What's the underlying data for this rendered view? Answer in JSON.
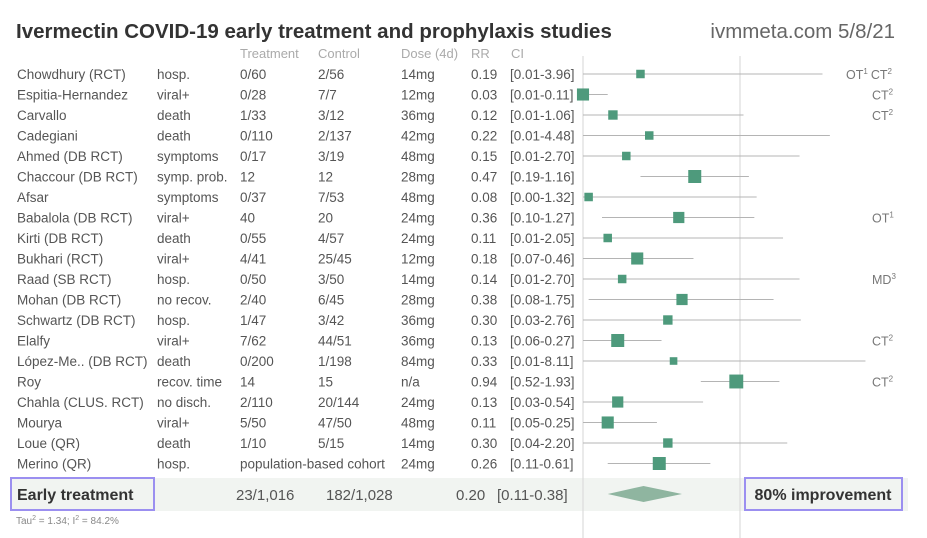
{
  "title": "Ivermectin COVID-19 early treatment and prophylaxis studies",
  "site": "ivmmeta.com 5/8/21",
  "headers": {
    "treatment": "Treatment",
    "control": "Control",
    "dose": "Dose (4d)",
    "rr": "RR",
    "ci": "CI"
  },
  "chart_data": {
    "type": "forest",
    "x_scale": "log",
    "reference_line": 1.0,
    "studies": [
      {
        "name": "Chowdhury (RCT)",
        "outcome": "hosp.",
        "treatment": "0/60",
        "control": "2/56",
        "dose": "14mg",
        "rr": 0.19,
        "rr_text": "0.19",
        "ci_low": 0.01,
        "ci_high": 3.96,
        "ci_text": "[0.01-3.96]",
        "weight": 0.5,
        "note": "OT",
        "note_sup": "1",
        "note2": "CT",
        "note2_sup": "2"
      },
      {
        "name": "Espitia-Hernandez",
        "outcome": "viral+",
        "treatment": "0/28",
        "control": "7/7",
        "dose": "12mg",
        "rr": 0.03,
        "rr_text": "0.03",
        "ci_low": 0.01,
        "ci_high": 0.11,
        "ci_text": "[0.01-0.11]",
        "weight": 0.9,
        "note": "CT",
        "note_sup": "2"
      },
      {
        "name": "Carvallo",
        "outcome": "death",
        "treatment": "1/33",
        "control": "3/12",
        "dose": "36mg",
        "rr": 0.12,
        "rr_text": "0.12",
        "ci_low": 0.01,
        "ci_high": 1.06,
        "ci_text": "[0.01-1.06]",
        "weight": 0.6,
        "note": "CT",
        "note_sup": "2"
      },
      {
        "name": "Cadegiani",
        "outcome": "death",
        "treatment": "0/110",
        "control": "2/137",
        "dose": "42mg",
        "rr": 0.22,
        "rr_text": "0.22",
        "ci_low": 0.01,
        "ci_high": 4.48,
        "ci_text": "[0.01-4.48]",
        "weight": 0.5
      },
      {
        "name": "Ahmed (DB RCT)",
        "outcome": "symptoms",
        "treatment": "0/17",
        "control": "3/19",
        "dose": "48mg",
        "rr": 0.15,
        "rr_text": "0.15",
        "ci_low": 0.01,
        "ci_high": 2.7,
        "ci_text": "[0.01-2.70]",
        "weight": 0.5
      },
      {
        "name": "Chaccour (DB RCT)",
        "outcome": "symp. prob.",
        "treatment": "12",
        "control": "12",
        "dose": "28mg",
        "rr": 0.47,
        "rr_text": "0.47",
        "ci_low": 0.19,
        "ci_high": 1.16,
        "ci_text": "[0.19-1.16]",
        "weight": 1.0
      },
      {
        "name": "Afsar",
        "outcome": "symptoms",
        "treatment": "0/37",
        "control": "7/53",
        "dose": "48mg",
        "rr": 0.08,
        "rr_text": "0.08",
        "ci_low": 0.0,
        "ci_high": 1.32,
        "ci_text": "[0.00-1.32]",
        "weight": 0.5
      },
      {
        "name": "Babalola (DB RCT)",
        "outcome": "viral+",
        "treatment": "40",
        "control": "20",
        "dose": "24mg",
        "rr": 0.36,
        "rr_text": "0.36",
        "ci_low": 0.1,
        "ci_high": 1.27,
        "ci_text": "[0.10-1.27]",
        "weight": 0.8,
        "note": "OT",
        "note_sup": "1"
      },
      {
        "name": "Kirti (DB RCT)",
        "outcome": "death",
        "treatment": "0/55",
        "control": "4/57",
        "dose": "24mg",
        "rr": 0.11,
        "rr_text": "0.11",
        "ci_low": 0.01,
        "ci_high": 2.05,
        "ci_text": "[0.01-2.05]",
        "weight": 0.5
      },
      {
        "name": "Bukhari (RCT)",
        "outcome": "viral+",
        "treatment": "4/41",
        "control": "25/45",
        "dose": "12mg",
        "rr": 0.18,
        "rr_text": "0.18",
        "ci_low": 0.07,
        "ci_high": 0.46,
        "ci_text": "[0.07-0.46]",
        "weight": 0.9
      },
      {
        "name": "Raad (SB RCT)",
        "outcome": "hosp.",
        "treatment": "0/50",
        "control": "3/50",
        "dose": "14mg",
        "rr": 0.14,
        "rr_text": "0.14",
        "ci_low": 0.01,
        "ci_high": 2.7,
        "ci_text": "[0.01-2.70]",
        "weight": 0.5,
        "note": "MD",
        "note_sup": "3"
      },
      {
        "name": "Mohan (DB RCT)",
        "outcome": "no recov.",
        "treatment": "2/40",
        "control": "6/45",
        "dose": "28mg",
        "rr": 0.38,
        "rr_text": "0.38",
        "ci_low": 0.08,
        "ci_high": 1.75,
        "ci_text": "[0.08-1.75]",
        "weight": 0.8
      },
      {
        "name": "Schwartz (DB RCT)",
        "outcome": "hosp.",
        "treatment": "1/47",
        "control": "3/42",
        "dose": "36mg",
        "rr": 0.3,
        "rr_text": "0.30",
        "ci_low": 0.03,
        "ci_high": 2.76,
        "ci_text": "[0.03-2.76]",
        "weight": 0.6
      },
      {
        "name": "Elalfy",
        "outcome": "viral+",
        "treatment": "7/62",
        "control": "44/51",
        "dose": "36mg",
        "rr": 0.13,
        "rr_text": "0.13",
        "ci_low": 0.06,
        "ci_high": 0.27,
        "ci_text": "[0.06-0.27]",
        "weight": 1.0,
        "note": "CT",
        "note_sup": "2"
      },
      {
        "name": "López-Me.. (DB RCT)",
        "outcome": "death",
        "treatment": "0/200",
        "control": "1/198",
        "dose": "84mg",
        "rr": 0.33,
        "rr_text": "0.33",
        "ci_low": 0.01,
        "ci_high": 8.11,
        "ci_text": "[0.01-8.11]",
        "weight": 0.4
      },
      {
        "name": "Roy",
        "outcome": "recov. time",
        "treatment": "14",
        "control": "15",
        "dose": "n/a",
        "rr": 0.94,
        "rr_text": "0.94",
        "ci_low": 0.52,
        "ci_high": 1.93,
        "ci_text": "[0.52-1.93]",
        "weight": 1.1,
        "note": "CT",
        "note_sup": "2"
      },
      {
        "name": "Chahla (CLUS. RCT)",
        "outcome": "no disch.",
        "treatment": "2/110",
        "control": "20/144",
        "dose": "24mg",
        "rr": 0.13,
        "rr_text": "0.13",
        "ci_low": 0.03,
        "ci_high": 0.54,
        "ci_text": "[0.03-0.54]",
        "weight": 0.8
      },
      {
        "name": "Mourya",
        "outcome": "viral+",
        "treatment": "5/50",
        "control": "47/50",
        "dose": "48mg",
        "rr": 0.11,
        "rr_text": "0.11",
        "ci_low": 0.05,
        "ci_high": 0.25,
        "ci_text": "[0.05-0.25]",
        "weight": 0.9
      },
      {
        "name": "Loue (QR)",
        "outcome": "death",
        "treatment": "1/10",
        "control": "5/15",
        "dose": "14mg",
        "rr": 0.3,
        "rr_text": "0.30",
        "ci_low": 0.04,
        "ci_high": 2.2,
        "ci_text": "[0.04-2.20]",
        "weight": 0.6
      },
      {
        "name": "Merino (QR)",
        "outcome": "hosp.",
        "treatment": "population-based cohort",
        "control": "",
        "dose": "24mg",
        "rr": 0.26,
        "rr_text": "0.26",
        "ci_low": 0.11,
        "ci_high": 0.61,
        "ci_text": "[0.11-0.61]",
        "weight": 1.0
      }
    ],
    "summary": {
      "label": "Early treatment",
      "treatment": "23/1,016",
      "control": "182/1,028",
      "rr": 0.2,
      "rr_text": "0.20",
      "ci_low": 0.11,
      "ci_high": 0.38,
      "ci_text": "[0.11-0.38]",
      "improvement": "80% improvement"
    },
    "heterogeneity": {
      "tau_prefix": "Tau",
      "tau_sup": "2",
      "tau_value": " = 1.34; I",
      "i_sup": "2",
      "i_value": " = 84.2%"
    }
  },
  "colors": {
    "marker": "#4e9a7c",
    "summary_diamond": "#8fb5a0",
    "ci_line": "#b4b4b4",
    "text": "#555555",
    "header": "#aaaaaa",
    "highlight_border": "#9b8ff0",
    "band": "#f1f4f1"
  }
}
